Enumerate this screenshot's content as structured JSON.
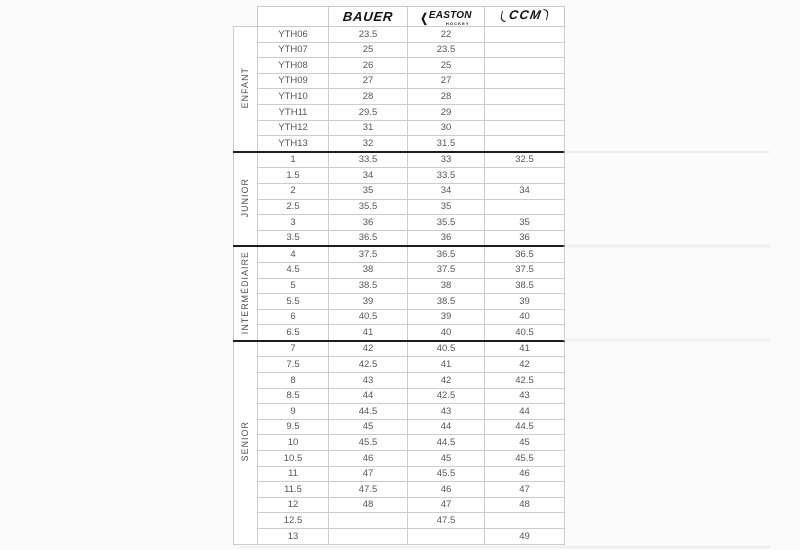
{
  "brand_header": {
    "bauer": {
      "label": "BAUER"
    },
    "easton": {
      "label": "EASTON",
      "sub": "HOCKEY",
      "chevron": "❮"
    },
    "ccm": {
      "label": "CCM"
    }
  },
  "size_chart": {
    "columns": [
      "category",
      "size",
      "bauer",
      "easton",
      "ccm"
    ],
    "sections": [
      {
        "label": "ENFANT",
        "rows": [
          [
            "YTH06",
            "23.5",
            "22",
            ""
          ],
          [
            "YTH07",
            "25",
            "23.5",
            ""
          ],
          [
            "YTH08",
            "26",
            "25",
            ""
          ],
          [
            "YTH09",
            "27",
            "27",
            ""
          ],
          [
            "YTH10",
            "28",
            "28",
            ""
          ],
          [
            "YTH11",
            "29.5",
            "29",
            ""
          ],
          [
            "YTH12",
            "31",
            "30",
            ""
          ],
          [
            "YTH13",
            "32",
            "31.5",
            ""
          ]
        ]
      },
      {
        "label": "JUNIOR",
        "rows": [
          [
            "1",
            "33.5",
            "33",
            "32.5"
          ],
          [
            "1.5",
            "34",
            "33.5",
            ""
          ],
          [
            "2",
            "35",
            "34",
            "34"
          ],
          [
            "2.5",
            "35.5",
            "35",
            ""
          ],
          [
            "3",
            "36",
            "35.5",
            "35"
          ],
          [
            "3.5",
            "36.5",
            "36",
            "36"
          ]
        ]
      },
      {
        "label": "INTERMÉDIAIRE",
        "rows": [
          [
            "4",
            "37.5",
            "36.5",
            "36.5"
          ],
          [
            "4.5",
            "38",
            "37.5",
            "37.5"
          ],
          [
            "5",
            "38.5",
            "38",
            "38.5"
          ],
          [
            "5.5",
            "39",
            "38.5",
            "39"
          ],
          [
            "6",
            "40.5",
            "39",
            "40"
          ],
          [
            "6.5",
            "41",
            "40",
            "40.5"
          ]
        ]
      },
      {
        "label": "SENIOR",
        "rows": [
          [
            "7",
            "42",
            "40.5",
            "41"
          ],
          [
            "7.5",
            "42.5",
            "41",
            "42"
          ],
          [
            "8",
            "43",
            "42",
            "42.5"
          ],
          [
            "8.5",
            "44",
            "42.5",
            "43"
          ],
          [
            "9",
            "44.5",
            "43",
            "44"
          ],
          [
            "9.5",
            "45",
            "44",
            "44.5"
          ],
          [
            "10",
            "45.5",
            "44.5",
            "45"
          ],
          [
            "10.5",
            "46",
            "45",
            "45.5"
          ],
          [
            "11",
            "47",
            "45.5",
            "46"
          ],
          [
            "11.5",
            "47.5",
            "46",
            "47"
          ],
          [
            "12",
            "48",
            "47",
            "48"
          ],
          [
            "12.5",
            "",
            "47.5",
            ""
          ],
          [
            "13",
            "",
            "",
            "49"
          ]
        ]
      }
    ]
  },
  "colors": {
    "section_divider": "#1d1d1f",
    "grid_line": "#cccccc",
    "text": "#55565a",
    "logo": "#141417"
  }
}
